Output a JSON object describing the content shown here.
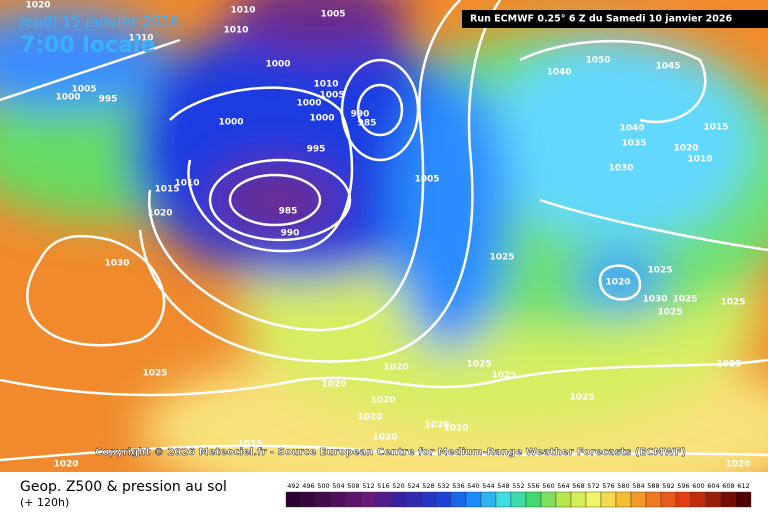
{
  "header": {
    "date": "Jeudi 15 janvier 2026",
    "time": "7:00 locale",
    "run": "Run ECMWF 0.25° 6 Z du Samedi 10 janvier 2026"
  },
  "copyright": "Copyright © 2026 Meteociel.fr - Source European Centre for Medium-Range Weather Forecasts (ECMWF)",
  "legend": {
    "title": "Geop. Z500 & pression au sol",
    "subtitle": "(+ 120h)",
    "ticks": [
      492,
      496,
      500,
      504,
      508,
      512,
      516,
      520,
      524,
      528,
      532,
      536,
      540,
      544,
      548,
      552,
      556,
      560,
      564,
      568,
      572,
      576,
      580,
      584,
      588,
      592,
      596,
      600,
      604,
      608,
      612
    ]
  },
  "isobar_labels": [
    1020,
    1010,
    1005,
    1010,
    1010,
    1000,
    1005,
    1000,
    995,
    1010,
    1005,
    1000,
    1000,
    1000,
    990,
    985,
    995,
    1015,
    1010,
    1020,
    985,
    990,
    1005,
    1030,
    1025,
    1020,
    1030,
    1025,
    1025,
    1025,
    1025,
    1025,
    1020,
    1025,
    1025,
    1020,
    1020,
    1020,
    1025,
    1020,
    1020,
    1020,
    1025,
    1025,
    1020,
    1020,
    1050,
    1045,
    1040,
    1040,
    1035,
    1015,
    1020,
    1010,
    1030
  ]
}
